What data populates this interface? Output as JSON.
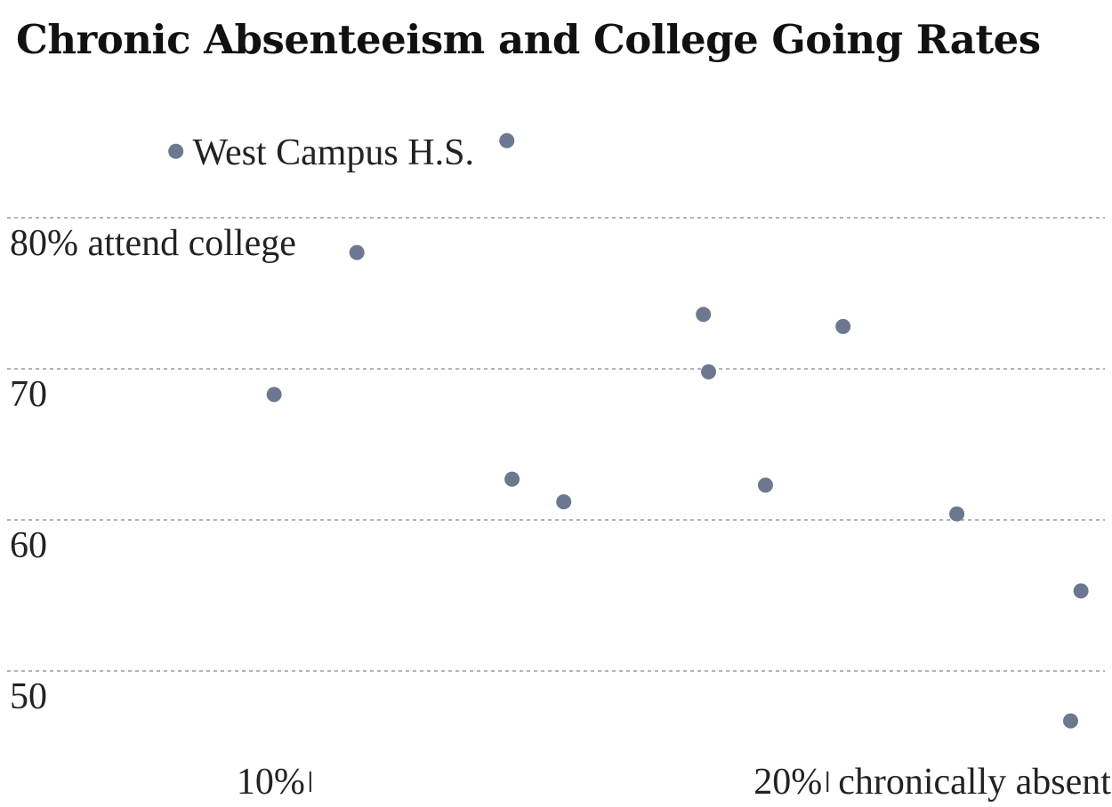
{
  "chart_data": {
    "type": "scatter",
    "title": "Chronic Absenteeism and College Going Rates",
    "xlabel": "chronically absent",
    "ylabel": "attend college",
    "y_ticks": [
      {
        "value": 80,
        "label": "80% attend college"
      },
      {
        "value": 70,
        "label": "70"
      },
      {
        "value": 60,
        "label": "60"
      },
      {
        "value": 50,
        "label": "50"
      }
    ],
    "x_ticks": [
      {
        "value": 10,
        "label": "10%"
      },
      {
        "value": 20,
        "label": "20%"
      }
    ],
    "xlim": [
      4,
      25.5
    ],
    "ylim": [
      45,
      89
    ],
    "grid": true,
    "color": "#6b7890",
    "points": [
      {
        "x": 7.4,
        "y": 84.4
      },
      {
        "x": 9.3,
        "y": 68.3
      },
      {
        "x": 10.9,
        "y": 77.7
      },
      {
        "x": 13.8,
        "y": 85.1
      },
      {
        "x": 13.9,
        "y": 62.7
      },
      {
        "x": 14.9,
        "y": 61.2
      },
      {
        "x": 17.6,
        "y": 73.6
      },
      {
        "x": 17.7,
        "y": 69.8
      },
      {
        "x": 18.8,
        "y": 62.3
      },
      {
        "x": 20.3,
        "y": 72.8
      },
      {
        "x": 22.5,
        "y": 60.4
      },
      {
        "x": 24.9,
        "y": 55.3
      },
      {
        "x": 24.7,
        "y": 46.7
      }
    ],
    "annotations": [
      {
        "text": "West Campus H.S.",
        "point_index": 0
      }
    ]
  }
}
